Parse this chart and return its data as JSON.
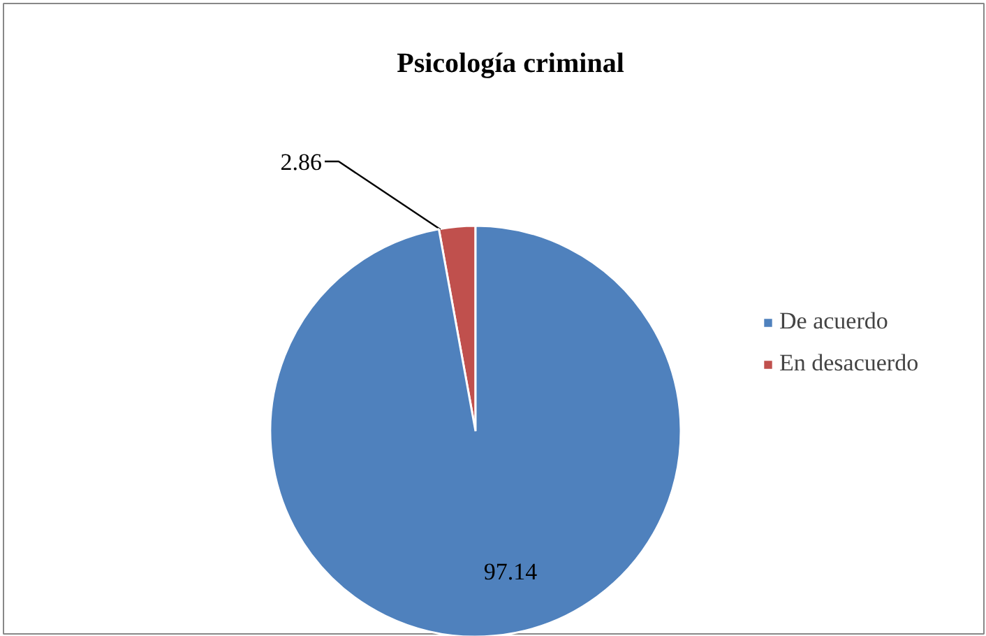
{
  "chart_data": {
    "type": "pie",
    "title": "Psicología criminal",
    "categories": [
      "De acuerdo",
      "En desacuerdo"
    ],
    "values": [
      97.14,
      2.86
    ],
    "colors": [
      "#4f81bd",
      "#c0504d"
    ],
    "data_labels": true,
    "legend": "right"
  }
}
